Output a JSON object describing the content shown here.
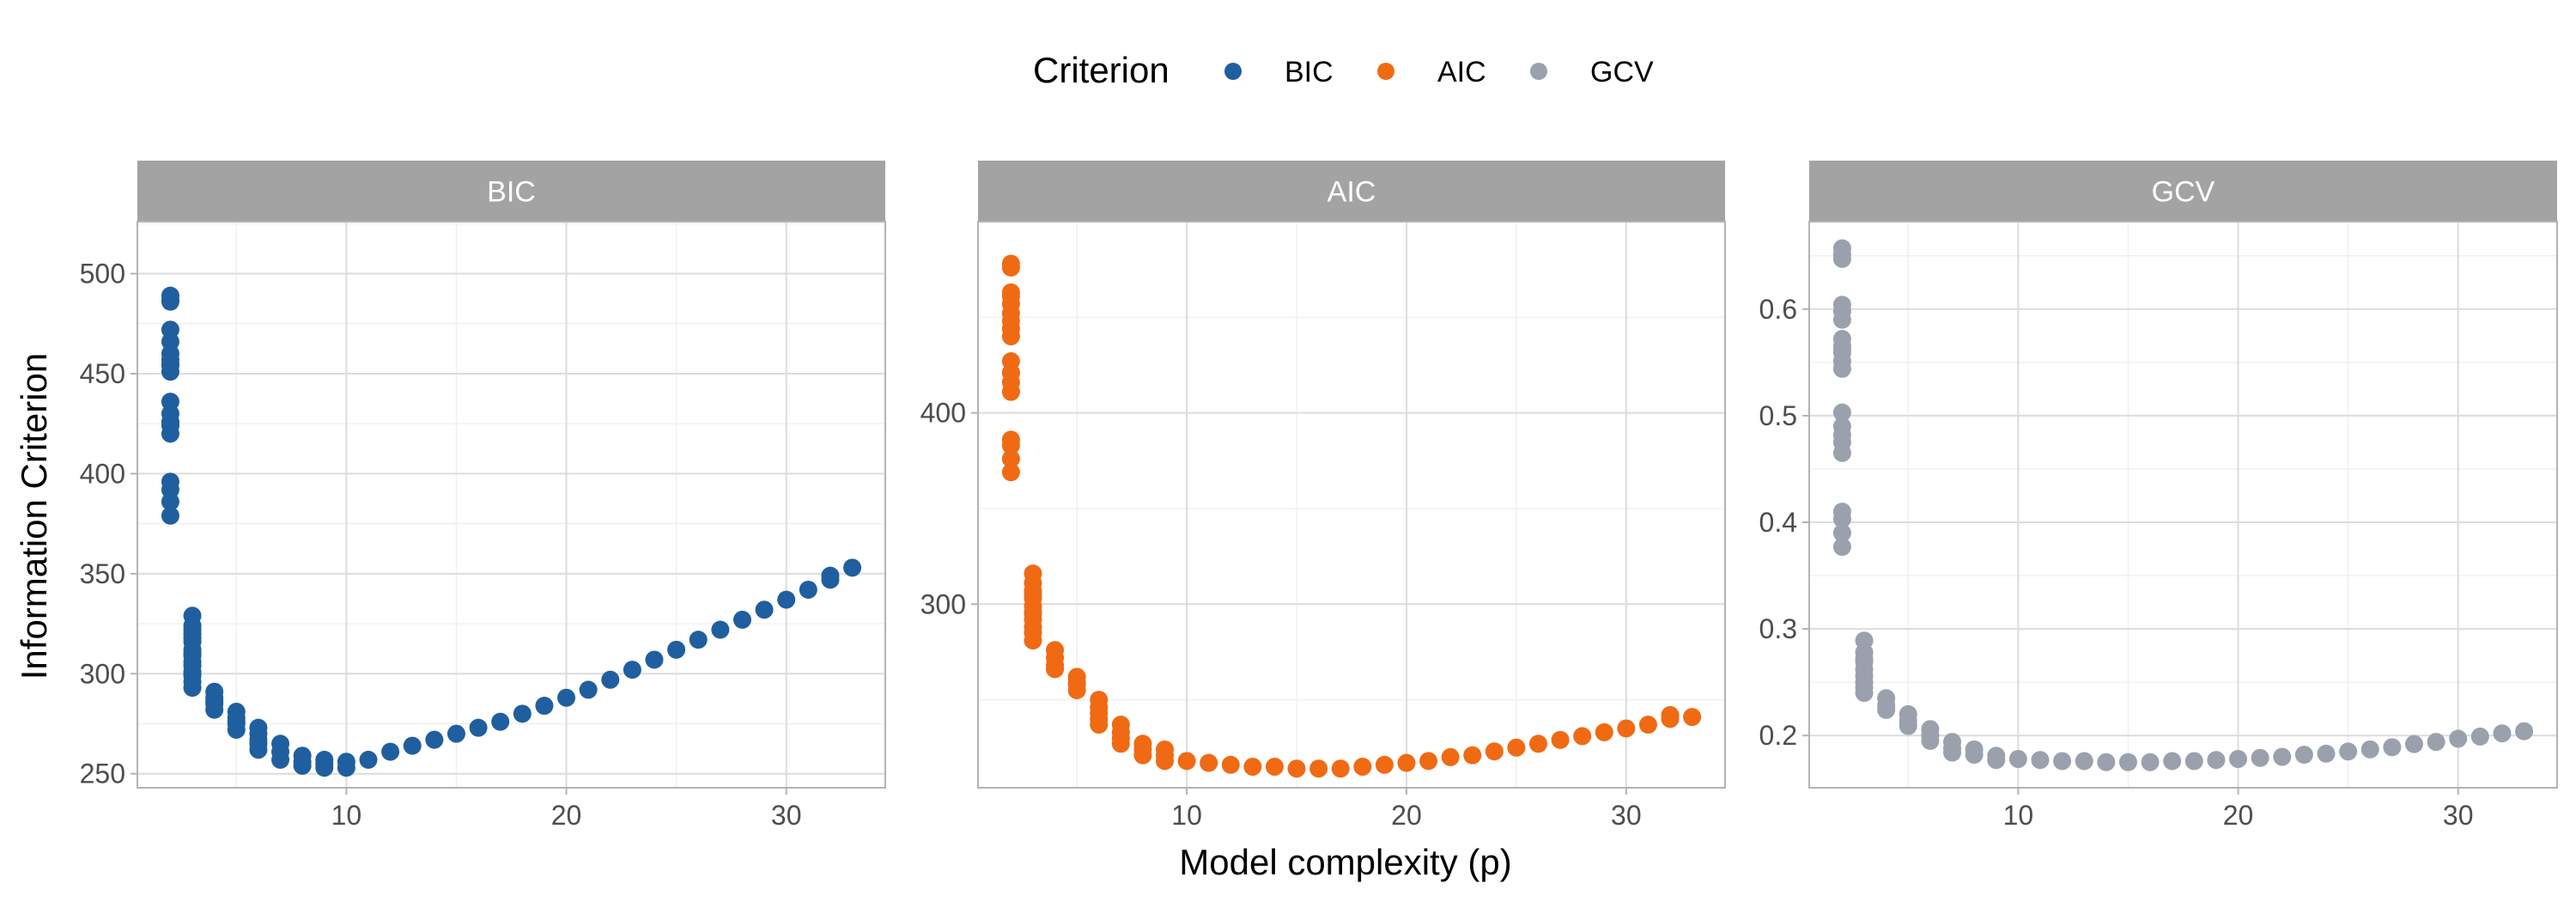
{
  "legend": {
    "title": "Criterion",
    "entries": [
      {
        "label": "BIC",
        "color": "#1f5f9f"
      },
      {
        "label": "AIC",
        "color": "#f06a14"
      },
      {
        "label": "GCV",
        "color": "#9aa1ad"
      }
    ]
  },
  "axes": {
    "xlabel": "Model complexity (p)",
    "ylabel": "Information Criterion"
  },
  "chart_data": {
    "type": "scatter",
    "facet_layout": "1 row x 3 columns, free y scales",
    "grid": true,
    "legend_position": "top",
    "xlabel": "Model complexity (p)",
    "ylabel": "Information Criterion",
    "panels": [
      {
        "name": "BIC",
        "strip_label": "BIC",
        "color": "#1f5f9f",
        "xlim": [
          0.5,
          34.5
        ],
        "ylim": [
          243,
          526
        ],
        "x_ticks": [
          10,
          20,
          30
        ],
        "x_tick_labels": [
          "10",
          "20",
          "30"
        ],
        "y_ticks": [
          250,
          300,
          350,
          400,
          450,
          500
        ],
        "y_tick_labels": [
          "250",
          "300",
          "350",
          "400",
          "450",
          "500"
        ],
        "x": [
          2,
          2,
          2,
          2,
          2,
          2,
          2,
          2,
          2,
          2,
          2,
          2,
          2,
          2,
          2,
          2,
          2,
          2,
          2,
          2,
          3,
          3,
          3,
          3,
          3,
          3,
          3,
          3,
          3,
          3,
          3,
          3,
          3,
          3,
          3,
          3,
          4,
          4,
          4,
          4,
          4,
          5,
          5,
          5,
          5,
          5,
          6,
          6,
          6,
          6,
          6,
          7,
          7,
          7,
          8,
          8,
          8,
          9,
          9,
          9,
          10,
          10,
          11,
          12,
          13,
          14,
          15,
          16,
          17,
          18,
          19,
          20,
          21,
          22,
          23,
          24,
          25,
          26,
          27,
          28,
          29,
          30,
          31,
          32,
          32,
          33
        ],
        "y": [
          489,
          486,
          472,
          466,
          460,
          457,
          454,
          451,
          436,
          430,
          426,
          424,
          420,
          396,
          392,
          386,
          379,
          425,
          455,
          487,
          329,
          324,
          320,
          316,
          312,
          309,
          306,
          304,
          301,
          299,
          296,
          293,
          310,
          318,
          322,
          300,
          291,
          288,
          285,
          282,
          286,
          281,
          278,
          275,
          272,
          276,
          273,
          270,
          267,
          262,
          265,
          265,
          261,
          257,
          259,
          256,
          254,
          257,
          255,
          253,
          256,
          253,
          257,
          261,
          264,
          267,
          270,
          273,
          276,
          280,
          284,
          288,
          292,
          297,
          302,
          307,
          312,
          317,
          322,
          327,
          332,
          337,
          342,
          347,
          349,
          353
        ]
      },
      {
        "name": "AIC",
        "strip_label": "AIC",
        "color": "#f06a14",
        "xlim": [
          0.5,
          34.5
        ],
        "ylim": [
          204,
          500
        ],
        "x_ticks": [
          10,
          20,
          30
        ],
        "x_tick_labels": [
          "10",
          "20",
          "30"
        ],
        "y_ticks": [
          300,
          400
        ],
        "y_tick_labels": [
          "300",
          "400"
        ],
        "x": [
          2,
          2,
          2,
          2,
          2,
          2,
          2,
          2,
          2,
          2,
          2,
          2,
          2,
          2,
          2,
          2,
          2,
          2,
          3,
          3,
          3,
          3,
          3,
          3,
          3,
          3,
          3,
          3,
          3,
          3,
          4,
          4,
          4,
          4,
          5,
          5,
          5,
          5,
          6,
          6,
          6,
          6,
          6,
          7,
          7,
          7,
          7,
          8,
          8,
          8,
          9,
          9,
          9,
          10,
          11,
          12,
          13,
          14,
          15,
          16,
          17,
          18,
          19,
          20,
          21,
          22,
          23,
          24,
          25,
          26,
          27,
          28,
          29,
          30,
          31,
          32,
          32,
          33
        ],
        "y": [
          478,
          476,
          463,
          457,
          452,
          448,
          444,
          440,
          427,
          421,
          416,
          411,
          386,
          383,
          376,
          369,
          421,
          461,
          316,
          311,
          307,
          303,
          299,
          295,
          292,
          288,
          285,
          281,
          305,
          296,
          276,
          272,
          268,
          266,
          262,
          258,
          255,
          259,
          250,
          246,
          243,
          240,
          237,
          237,
          233,
          230,
          227,
          227,
          224,
          221,
          224,
          221,
          218,
          218,
          217,
          216,
          215,
          215,
          214,
          214,
          214,
          215,
          216,
          217,
          218,
          220,
          221,
          223,
          225,
          227,
          229,
          231,
          233,
          235,
          237,
          240,
          242,
          241
        ]
      },
      {
        "name": "GCV",
        "strip_label": "GCV",
        "color": "#9aa1ad",
        "xlim": [
          0.5,
          34.5
        ],
        "ylim": [
          0.151,
          0.682
        ],
        "x_ticks": [
          10,
          20,
          30
        ],
        "x_tick_labels": [
          "10",
          "20",
          "30"
        ],
        "y_ticks": [
          0.2,
          0.3,
          0.4,
          0.5,
          0.6
        ],
        "y_tick_labels": [
          "0.2",
          "0.3",
          "0.4",
          "0.5",
          "0.6"
        ],
        "x": [
          2,
          2,
          2,
          2,
          2,
          2,
          2,
          2,
          2,
          2,
          2,
          2,
          2,
          2,
          2,
          2,
          2,
          2,
          2,
          2,
          2,
          3,
          3,
          3,
          3,
          3,
          3,
          3,
          3,
          3,
          4,
          4,
          4,
          5,
          5,
          5,
          6,
          6,
          6,
          7,
          7,
          7,
          8,
          8,
          9,
          9,
          10,
          11,
          12,
          13,
          14,
          15,
          16,
          17,
          18,
          19,
          20,
          21,
          22,
          23,
          24,
          25,
          26,
          27,
          28,
          29,
          30,
          31,
          32,
          33
        ],
        "y": [
          0.657,
          0.651,
          0.604,
          0.59,
          0.572,
          0.565,
          0.559,
          0.551,
          0.544,
          0.503,
          0.49,
          0.482,
          0.475,
          0.465,
          0.41,
          0.403,
          0.39,
          0.377,
          0.562,
          0.598,
          0.647,
          0.289,
          0.278,
          0.269,
          0.262,
          0.256,
          0.25,
          0.245,
          0.24,
          0.272,
          0.235,
          0.228,
          0.224,
          0.22,
          0.214,
          0.209,
          0.206,
          0.2,
          0.195,
          0.194,
          0.188,
          0.184,
          0.187,
          0.182,
          0.181,
          0.177,
          0.178,
          0.177,
          0.176,
          0.176,
          0.175,
          0.175,
          0.175,
          0.176,
          0.176,
          0.177,
          0.178,
          0.179,
          0.18,
          0.182,
          0.183,
          0.185,
          0.187,
          0.189,
          0.192,
          0.194,
          0.197,
          0.199,
          0.202,
          0.204
        ]
      }
    ]
  }
}
